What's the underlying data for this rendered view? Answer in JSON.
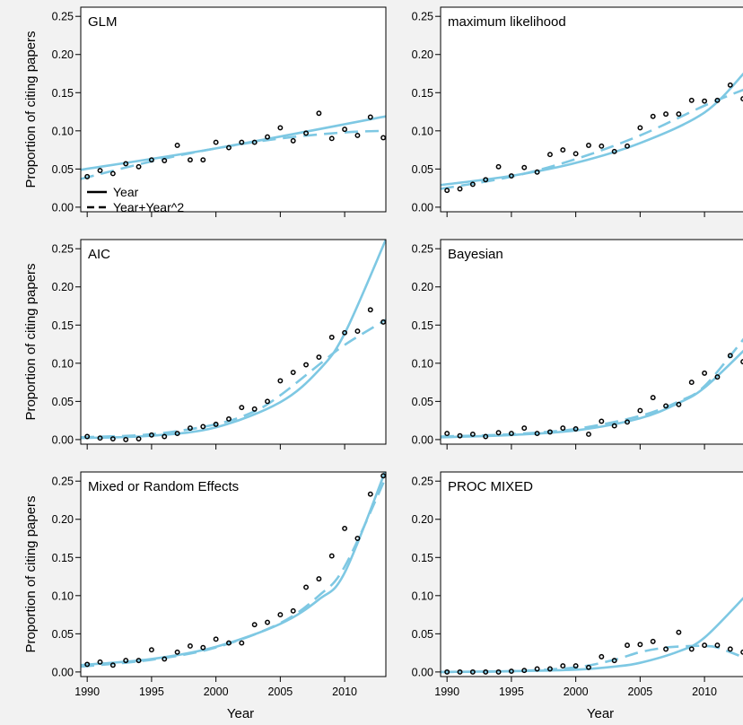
{
  "figure": {
    "ylabel": "Proportion of citing papers",
    "xlabel": "Year",
    "x_ticks": [
      1990,
      1995,
      2000,
      2005,
      2010
    ],
    "y_ticks": [
      "0.00",
      "0.05",
      "0.10",
      "0.15",
      "0.20",
      "0.25"
    ],
    "legend": {
      "solid": "Year",
      "dashed": "Year+Year^2",
      "placement": "bottom-left of first panel"
    },
    "colors": {
      "fit": "#7ec8e3",
      "points": "#000000",
      "background": "#f2f2f2",
      "panel": "#ffffff"
    }
  },
  "chart_data": [
    {
      "type": "scatter",
      "title": "GLM",
      "xlim": [
        1989.5,
        2013.2
      ],
      "ylim": [
        -0.006,
        0.262
      ],
      "x": [
        1990,
        1991,
        1992,
        1993,
        1994,
        1995,
        1996,
        1997,
        1998,
        1999,
        2000,
        2001,
        2002,
        2003,
        2004,
        2005,
        2006,
        2007,
        2008,
        2009,
        2010,
        2011,
        2012,
        2013
      ],
      "values": [
        0.04,
        0.048,
        0.044,
        0.057,
        0.053,
        0.062,
        0.061,
        0.081,
        0.062,
        0.062,
        0.085,
        0.078,
        0.085,
        0.085,
        0.092,
        0.104,
        0.087,
        0.097,
        0.123,
        0.09,
        0.102,
        0.094,
        0.118,
        0.091
      ],
      "fit_linear": [
        [
          1989.5,
          0.049
        ],
        [
          2000,
          0.077
        ],
        [
          2013.2,
          0.119
        ]
      ],
      "fit_quadratic": [
        [
          1989.5,
          0.037
        ],
        [
          1995,
          0.06
        ],
        [
          2000,
          0.077
        ],
        [
          2005,
          0.09
        ],
        [
          2010,
          0.098
        ],
        [
          2013.2,
          0.1
        ]
      ]
    },
    {
      "type": "scatter",
      "title": "maximum likelihood",
      "xlim": [
        1989.5,
        2013.2
      ],
      "ylim": [
        -0.006,
        0.262
      ],
      "x": [
        1990,
        1991,
        1992,
        1993,
        1994,
        1995,
        1996,
        1997,
        1998,
        1999,
        2000,
        2001,
        2002,
        2003,
        2004,
        2005,
        2006,
        2007,
        2008,
        2009,
        2010,
        2011,
        2012,
        2013
      ],
      "values": [
        0.022,
        0.024,
        0.03,
        0.036,
        0.053,
        0.041,
        0.052,
        0.046,
        0.069,
        0.075,
        0.07,
        0.081,
        0.08,
        0.073,
        0.08,
        0.104,
        0.119,
        0.122,
        0.122,
        0.14,
        0.139,
        0.14,
        0.16,
        0.142
      ],
      "fit_linear": [
        [
          1989.5,
          0.029
        ],
        [
          1995,
          0.041
        ],
        [
          2000,
          0.058
        ],
        [
          2005,
          0.084
        ],
        [
          2010,
          0.124
        ],
        [
          2013.2,
          0.178
        ]
      ],
      "fit_quadratic": [
        [
          1989.5,
          0.024
        ],
        [
          1995,
          0.04
        ],
        [
          2000,
          0.063
        ],
        [
          2005,
          0.094
        ],
        [
          2010,
          0.133
        ],
        [
          2013.2,
          0.155
        ]
      ]
    },
    {
      "type": "scatter",
      "title": "AIC",
      "xlim": [
        1989.5,
        2013.2
      ],
      "ylim": [
        -0.006,
        0.262
      ],
      "x": [
        1990,
        1991,
        1992,
        1993,
        1994,
        1995,
        1996,
        1997,
        1998,
        1999,
        2000,
        2001,
        2002,
        2003,
        2004,
        2005,
        2006,
        2007,
        2008,
        2009,
        2010,
        2011,
        2012,
        2013
      ],
      "values": [
        0.004,
        0.002,
        0.001,
        0.0,
        0.001,
        0.006,
        0.004,
        0.008,
        0.015,
        0.017,
        0.02,
        0.027,
        0.042,
        0.04,
        0.05,
        0.077,
        0.088,
        0.098,
        0.108,
        0.134,
        0.14,
        0.142,
        0.17,
        0.154
      ],
      "fit_linear": [
        [
          1989.5,
          0.002
        ],
        [
          1995,
          0.005
        ],
        [
          2000,
          0.016
        ],
        [
          2005,
          0.049
        ],
        [
          2008,
          0.091
        ],
        [
          2010,
          0.139
        ],
        [
          2013.2,
          0.262
        ]
      ],
      "fit_quadratic": [
        [
          1989.5,
          0.003
        ],
        [
          1995,
          0.007
        ],
        [
          2000,
          0.02
        ],
        [
          2003,
          0.037
        ],
        [
          2005,
          0.058
        ],
        [
          2008,
          0.098
        ],
        [
          2010,
          0.124
        ],
        [
          2013.2,
          0.157
        ]
      ]
    },
    {
      "type": "scatter",
      "title": "Bayesian",
      "xlim": [
        1989.5,
        2013.2
      ],
      "ylim": [
        -0.006,
        0.262
      ],
      "x": [
        1990,
        1991,
        1992,
        1993,
        1994,
        1995,
        1996,
        1997,
        1998,
        1999,
        2000,
        2001,
        2002,
        2003,
        2004,
        2005,
        2006,
        2007,
        2008,
        2009,
        2010,
        2011,
        2012,
        2013
      ],
      "values": [
        0.008,
        0.005,
        0.007,
        0.004,
        0.009,
        0.008,
        0.015,
        0.008,
        0.01,
        0.015,
        0.014,
        0.007,
        0.024,
        0.018,
        0.023,
        0.038,
        0.055,
        0.044,
        0.046,
        0.075,
        0.087,
        0.082,
        0.11,
        0.102
      ],
      "fit_linear": [
        [
          1989.5,
          0.003
        ],
        [
          1995,
          0.006
        ],
        [
          2000,
          0.012
        ],
        [
          2005,
          0.028
        ],
        [
          2008,
          0.048
        ],
        [
          2010,
          0.068
        ],
        [
          2013.2,
          0.119
        ]
      ],
      "fit_quadratic": [
        [
          1989.5,
          0.004
        ],
        [
          1995,
          0.007
        ],
        [
          2000,
          0.014
        ],
        [
          2005,
          0.031
        ],
        [
          2008,
          0.05
        ],
        [
          2010,
          0.07
        ],
        [
          2013.2,
          0.135
        ]
      ]
    },
    {
      "type": "scatter",
      "title": "Mixed or Random Effects",
      "xlim": [
        1989.5,
        2013.2
      ],
      "ylim": [
        -0.006,
        0.262
      ],
      "x": [
        1990,
        1991,
        1992,
        1993,
        1994,
        1995,
        1996,
        1997,
        1998,
        1999,
        2000,
        2001,
        2002,
        2003,
        2004,
        2005,
        2006,
        2007,
        2008,
        2009,
        2010,
        2011,
        2012,
        2013
      ],
      "values": [
        0.01,
        0.013,
        0.009,
        0.015,
        0.015,
        0.029,
        0.017,
        0.026,
        0.034,
        0.032,
        0.043,
        0.038,
        0.038,
        0.062,
        0.065,
        0.075,
        0.08,
        0.111,
        0.122,
        0.152,
        0.188,
        0.175,
        0.233,
        0.257
      ],
      "fit_linear": [
        [
          1989.5,
          0.009
        ],
        [
          1995,
          0.017
        ],
        [
          2000,
          0.033
        ],
        [
          2005,
          0.063
        ],
        [
          2008,
          0.095
        ],
        [
          2010,
          0.13
        ],
        [
          2013.2,
          0.265
        ]
      ],
      "fit_quadratic": [
        [
          1989.5,
          0.007
        ],
        [
          1995,
          0.016
        ],
        [
          2000,
          0.032
        ],
        [
          2005,
          0.064
        ],
        [
          2008,
          0.1
        ],
        [
          2010,
          0.138
        ],
        [
          2013.2,
          0.255
        ]
      ]
    },
    {
      "type": "scatter",
      "title": "PROC MIXED",
      "xlim": [
        1989.5,
        2013.2
      ],
      "ylim": [
        -0.006,
        0.262
      ],
      "x": [
        1990,
        1991,
        1992,
        1993,
        1994,
        1995,
        1996,
        1997,
        1998,
        1999,
        2000,
        2001,
        2002,
        2003,
        2004,
        2005,
        2006,
        2007,
        2008,
        2009,
        2010,
        2011,
        2012,
        2013
      ],
      "values": [
        0.0,
        0.0,
        0.0,
        0.0,
        0.0,
        0.001,
        0.002,
        0.004,
        0.004,
        0.008,
        0.008,
        0.006,
        0.02,
        0.015,
        0.035,
        0.036,
        0.04,
        0.03,
        0.052,
        0.03,
        0.035,
        0.035,
        0.03,
        0.026
      ],
      "fit_linear": [
        [
          1989.5,
          0.0
        ],
        [
          1995,
          0.001
        ],
        [
          2000,
          0.003
        ],
        [
          2003,
          0.007
        ],
        [
          2005,
          0.012
        ],
        [
          2008,
          0.027
        ],
        [
          2010,
          0.045
        ],
        [
          2013.2,
          0.1
        ]
      ],
      "fit_quadratic": [
        [
          1989.5,
          0.0
        ],
        [
          1995,
          0.001
        ],
        [
          2000,
          0.006
        ],
        [
          2003,
          0.016
        ],
        [
          2005,
          0.026
        ],
        [
          2007,
          0.032
        ],
        [
          2009,
          0.034
        ],
        [
          2010,
          0.034
        ],
        [
          2011,
          0.032
        ],
        [
          2013.2,
          0.018
        ]
      ]
    }
  ]
}
